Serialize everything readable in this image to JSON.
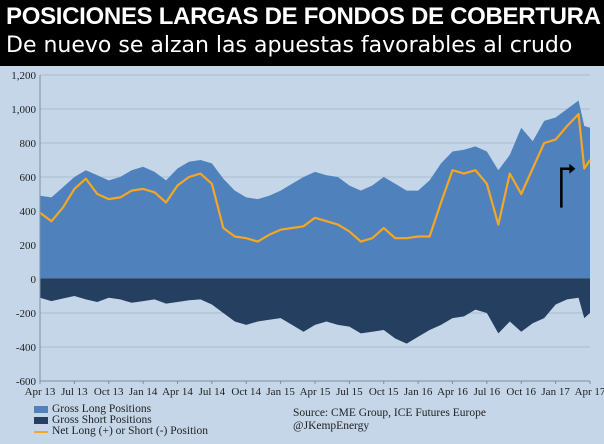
{
  "header": {
    "title": "POSICIONES LARGAS DE FONDOS DE COBERTURA",
    "subtitle": "De nuevo se alzan las apuestas favorables al crudo"
  },
  "source": {
    "line1": "Source:  CME Group, ICE Futures Europe",
    "line2": "@JKempEnergy"
  },
  "colors": {
    "long": "#4f81bd",
    "short": "#243f60",
    "net": "#f5a623",
    "zero_line": "#3a3a3a",
    "grid": "#9fb4c9",
    "plot_bg": "#c4d6e8",
    "arrow": "#000000"
  },
  "chart_data": {
    "type": "area",
    "title": "",
    "xlabel": "",
    "ylabel": "",
    "ylim": [
      -600,
      1200
    ],
    "yticks": [
      -600,
      -400,
      -200,
      0,
      200,
      400,
      600,
      800,
      1000,
      1200
    ],
    "ytick_labels": [
      "-600",
      "-400",
      "-200",
      "0",
      "200",
      "400",
      "600",
      "800",
      "1,000",
      "1,200"
    ],
    "x_index_range": [
      0,
      48
    ],
    "xtick_labels": [
      "Apr 13",
      "Jul 13",
      "Oct 13",
      "Jan 14",
      "Apr 14",
      "Jul 14",
      "Oct 14",
      "Jan 15",
      "Apr 15",
      "Jul 15",
      "Oct 15",
      "Jan 16",
      "Apr 16",
      "Jul 16",
      "Oct 16",
      "Jan 17",
      "Apr 17"
    ],
    "xtick_positions": [
      0,
      3,
      6,
      9,
      12,
      15,
      18,
      21,
      24,
      27,
      30,
      33,
      36,
      39,
      42,
      45,
      48
    ],
    "series": [
      {
        "name": "Gross Long Positions",
        "x": [
          0,
          1,
          2,
          3,
          4,
          5,
          6,
          7,
          8,
          9,
          10,
          11,
          12,
          13,
          14,
          15,
          16,
          17,
          18,
          19,
          20,
          21,
          22,
          23,
          24,
          25,
          26,
          27,
          28,
          29,
          30,
          31,
          32,
          33,
          34,
          35,
          36,
          37,
          38,
          39,
          40,
          41,
          42,
          43,
          44,
          45,
          46,
          47,
          47.5,
          48
        ],
        "values": [
          490,
          480,
          540,
          600,
          640,
          610,
          580,
          600,
          640,
          660,
          630,
          580,
          650,
          690,
          700,
          680,
          590,
          520,
          480,
          470,
          490,
          520,
          560,
          600,
          630,
          610,
          600,
          550,
          520,
          550,
          600,
          560,
          520,
          520,
          580,
          680,
          750,
          760,
          780,
          750,
          640,
          730,
          890,
          810,
          930,
          950,
          1000,
          1050,
          900,
          890
        ]
      },
      {
        "name": "Gross Short Positions",
        "x": [
          0,
          1,
          2,
          3,
          4,
          5,
          6,
          7,
          8,
          9,
          10,
          11,
          12,
          13,
          14,
          15,
          16,
          17,
          18,
          19,
          20,
          21,
          22,
          23,
          24,
          25,
          26,
          27,
          28,
          29,
          30,
          31,
          32,
          33,
          34,
          35,
          36,
          37,
          38,
          39,
          40,
          41,
          42,
          43,
          44,
          45,
          46,
          47,
          47.5,
          48
        ],
        "values": [
          -110,
          -130,
          -115,
          -100,
          -120,
          -135,
          -110,
          -120,
          -140,
          -130,
          -120,
          -145,
          -135,
          -125,
          -120,
          -150,
          -200,
          -250,
          -270,
          -250,
          -240,
          -230,
          -270,
          -310,
          -270,
          -250,
          -270,
          -280,
          -320,
          -310,
          -300,
          -350,
          -380,
          -340,
          -300,
          -270,
          -230,
          -220,
          -180,
          -200,
          -320,
          -250,
          -310,
          -260,
          -230,
          -150,
          -120,
          -110,
          -230,
          -200
        ]
      },
      {
        "name": "Net Long (+) or Short (-) Position",
        "x": [
          0,
          1,
          2,
          3,
          4,
          5,
          6,
          7,
          8,
          9,
          10,
          11,
          12,
          13,
          14,
          15,
          16,
          17,
          18,
          19,
          20,
          21,
          22,
          23,
          24,
          25,
          26,
          27,
          28,
          29,
          30,
          31,
          32,
          33,
          34,
          35,
          36,
          37,
          38,
          39,
          40,
          41,
          42,
          43,
          44,
          45,
          46,
          47,
          47.5,
          48
        ],
        "values": [
          390,
          340,
          420,
          530,
          590,
          500,
          470,
          480,
          520,
          530,
          510,
          450,
          550,
          600,
          620,
          560,
          300,
          250,
          240,
          220,
          260,
          290,
          300,
          310,
          360,
          340,
          320,
          280,
          220,
          240,
          300,
          240,
          240,
          250,
          250,
          450,
          640,
          620,
          640,
          560,
          320,
          620,
          500,
          650,
          800,
          820,
          900,
          970,
          650,
          700
        ]
      }
    ],
    "legend": {
      "placement": "bottom-left",
      "entries": [
        "Gross Long Positions",
        "Gross Short Positions",
        "Net Long (+) or Short (-) Position"
      ]
    },
    "annotation": {
      "type": "arrow",
      "direction": "up-right",
      "near_x": 45.5,
      "from_y": 420,
      "to_y": 660
    }
  }
}
